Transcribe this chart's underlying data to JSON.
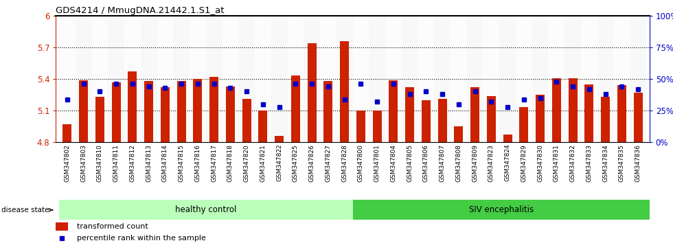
{
  "title": "GDS4214 / MmugDNA.21442.1.S1_at",
  "samples": [
    "GSM347802",
    "GSM347803",
    "GSM347810",
    "GSM347811",
    "GSM347812",
    "GSM347813",
    "GSM347814",
    "GSM347815",
    "GSM347816",
    "GSM347817",
    "GSM347818",
    "GSM347820",
    "GSM347821",
    "GSM347822",
    "GSM347825",
    "GSM347826",
    "GSM347827",
    "GSM347828",
    "GSM347800",
    "GSM347801",
    "GSM347804",
    "GSM347805",
    "GSM347806",
    "GSM347807",
    "GSM347808",
    "GSM347809",
    "GSM347823",
    "GSM347824",
    "GSM347829",
    "GSM347830",
    "GSM347831",
    "GSM347832",
    "GSM347833",
    "GSM347834",
    "GSM347835",
    "GSM347836"
  ],
  "bar_values": [
    4.97,
    5.39,
    5.23,
    5.37,
    5.47,
    5.38,
    5.32,
    5.38,
    5.4,
    5.42,
    5.33,
    5.21,
    5.1,
    4.86,
    5.43,
    5.74,
    5.38,
    5.76,
    5.1,
    5.1,
    5.39,
    5.32,
    5.2,
    5.21,
    4.95,
    5.32,
    5.24,
    4.87,
    5.13,
    5.25,
    5.41,
    5.41,
    5.35,
    5.23,
    5.34,
    5.27
  ],
  "percentile_values": [
    34,
    46,
    40,
    46,
    46,
    44,
    43,
    46,
    46,
    46,
    43,
    40,
    30,
    28,
    46,
    46,
    44,
    34,
    46,
    32,
    46,
    38,
    40,
    38,
    30,
    40,
    32,
    28,
    34,
    35,
    48,
    44,
    42,
    38,
    44,
    42
  ],
  "ylim_left": [
    4.8,
    6.0
  ],
  "ylim_right": [
    0,
    100
  ],
  "yticks_left": [
    4.8,
    5.1,
    5.4,
    5.7,
    6.0
  ],
  "yticks_right": [
    0,
    25,
    50,
    75,
    100
  ],
  "ytick_labels_left": [
    "4.8",
    "5.1",
    "5.4",
    "5.7",
    "6"
  ],
  "ytick_labels_right": [
    "0%",
    "25%",
    "50%",
    "75%",
    "100%"
  ],
  "bar_color": "#cc2200",
  "dot_color": "#0000cc",
  "healthy_control_color": "#bbffbb",
  "siv_color": "#44cc44",
  "healthy_count": 18,
  "group_label_1": "healthy control",
  "group_label_2": "SIV encephalitis",
  "disease_state_label": "disease state",
  "legend_bar_label": "transformed count",
  "legend_dot_label": "percentile rank within the sample",
  "bar_base": 4.8,
  "grid_dotted_vals": [
    5.1,
    5.4,
    5.7
  ]
}
